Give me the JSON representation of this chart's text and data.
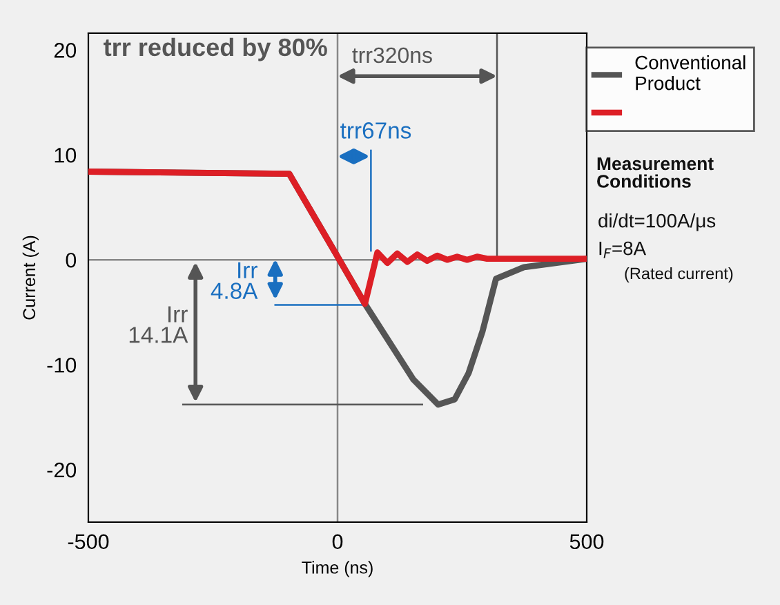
{
  "chart_data": {
    "type": "line",
    "title": "trr reduced by 80%",
    "xlabel": "Time (ns)",
    "ylabel": "Current (A)",
    "series": [
      {
        "name": "Conventional\nProduct",
        "color": "#555555",
        "x": [
          -500,
          -97,
          0,
          55,
          152,
          202,
          235,
          263,
          291,
          318,
          374,
          500
        ],
        "values": [
          8.4,
          8.2,
          0.3,
          -4.2,
          -11.4,
          -13.8,
          -13.3,
          -10.8,
          -6.8,
          -1.8,
          -0.7,
          0.1
        ]
      },
      {
        "color": "#dd1f26",
        "x": [
          -500,
          -97,
          0,
          55,
          80,
          100,
          120,
          140,
          160,
          180,
          200,
          220,
          240,
          260,
          280,
          300,
          500
        ],
        "values": [
          8.4,
          8.2,
          0.3,
          -4.2,
          0.7,
          -0.3,
          0.6,
          -0.2,
          0.5,
          -0.1,
          0.4,
          0,
          0.3,
          0,
          0.3,
          0.1,
          0.1
        ]
      }
    ],
    "xlim": [
      -500,
      500
    ],
    "ylim": [
      -25,
      21.6
    ],
    "xticks": [
      -500,
      0,
      500
    ],
    "yticks": [
      -20,
      -10,
      0,
      10,
      20
    ],
    "ref_lines": [
      {
        "axis": "x",
        "value": 0,
        "color": "#888888"
      },
      {
        "axis": "y",
        "value": 0,
        "color": "#888888"
      },
      {
        "axis": "x",
        "value": 320,
        "color": "#555555"
      },
      {
        "axis": "x",
        "value": 67,
        "color": "#1a6fc0"
      },
      {
        "axis": "y",
        "value": -13.8,
        "color": "#555555"
      },
      {
        "axis": "y",
        "value": -4.3,
        "color": "#1a6fc0"
      }
    ],
    "annotations": [
      {
        "text": "trr320ns",
        "x": 320,
        "y": 17.5
      },
      "trr67ns",
      "Irr\n4.8A",
      "Irr\n14.1A",
      "Measurement\nConditions",
      "di/dt=100A/μs",
      "I$_{F}$=8A",
      "(Rated current)"
    ],
    "legend": "top right",
    "grid": false
  }
}
